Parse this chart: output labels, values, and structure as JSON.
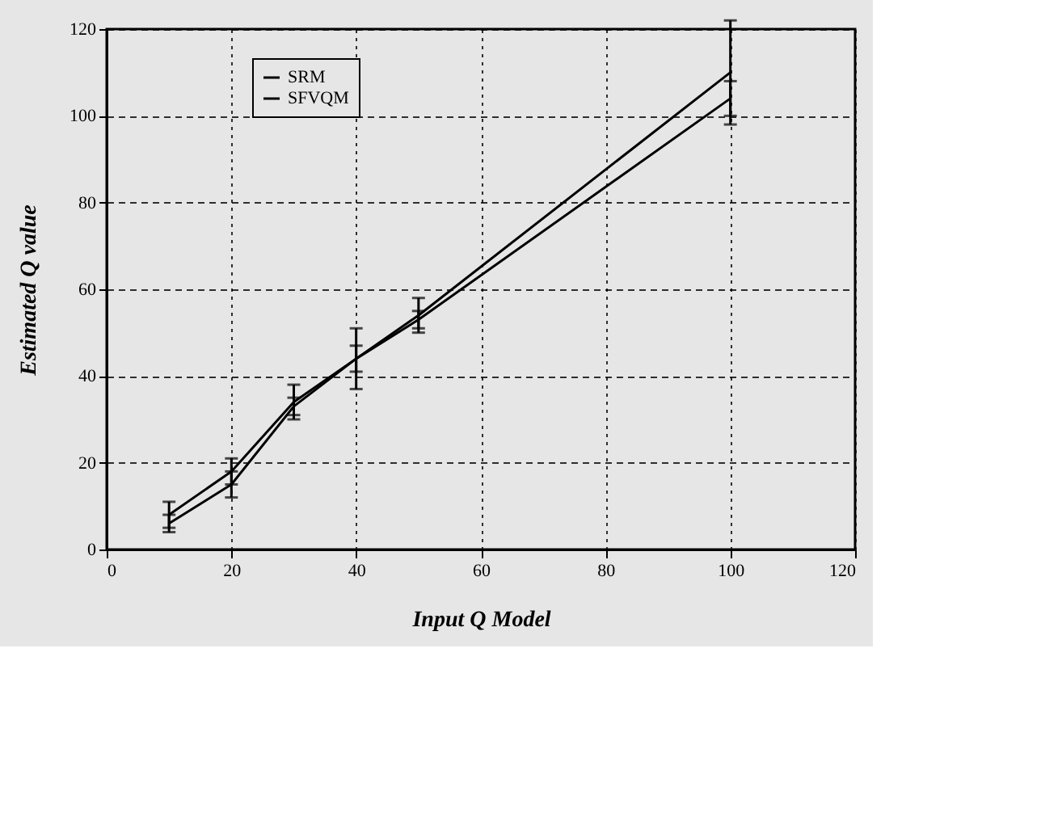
{
  "chart_data": {
    "type": "line",
    "xlabel": "Input Q Model",
    "ylabel": "Estimated Q value",
    "x": [
      10,
      20,
      30,
      40,
      50,
      100
    ],
    "series": [
      {
        "name": "SRM",
        "color": "#000000",
        "values": [
          8,
          18,
          34,
          44,
          54,
          110
        ],
        "errors": [
          3,
          3,
          4,
          7,
          4,
          12
        ]
      },
      {
        "name": "SFVQM",
        "color": "#000000",
        "values": [
          6,
          15,
          33,
          44,
          53,
          104
        ],
        "errors": [
          2,
          3,
          2,
          3,
          2,
          4
        ]
      }
    ],
    "xlim": [
      0,
      120
    ],
    "xticks": [
      0,
      20,
      40,
      60,
      80,
      100,
      120
    ],
    "ylim": [
      0,
      120
    ],
    "yticks": [
      0,
      20,
      40,
      60,
      80,
      100,
      120
    ],
    "grid": true,
    "legend": "top left",
    "marker": "none",
    "line_style": "solid"
  }
}
